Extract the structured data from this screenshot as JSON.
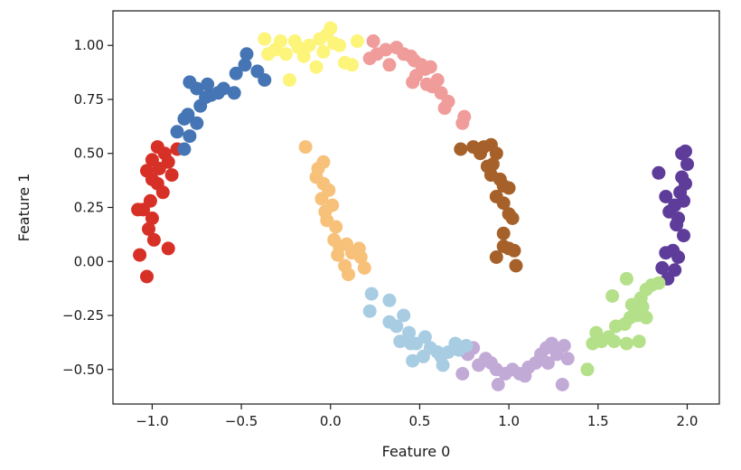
{
  "chart_data": {
    "type": "scatter",
    "title": "",
    "xlabel": "Feature 0",
    "ylabel": "Feature 1",
    "xlim": [
      -1.22,
      2.18
    ],
    "ylim": [
      -0.66,
      1.16
    ],
    "xticks": [
      -1.0,
      -0.5,
      0.0,
      0.5,
      1.0,
      1.5,
      2.0
    ],
    "xtick_labels": [
      "−1.0",
      "−0.5",
      "0.0",
      "0.5",
      "1.0",
      "1.5",
      "2.0"
    ],
    "yticks": [
      1.0,
      0.75,
      0.5,
      0.25,
      0.0,
      -0.25,
      -0.5
    ],
    "ytick_labels": [
      "1.00",
      "0.75",
      "0.50",
      "0.25",
      "0.00",
      "−0.25",
      "−0.50"
    ],
    "grid": false,
    "legend": false,
    "clusters": [
      {
        "color": "#d73027",
        "points": [
          [
            -1.07,
            0.03
          ],
          [
            -1.03,
            -0.07
          ],
          [
            -0.91,
            0.06
          ],
          [
            -0.99,
            0.1
          ],
          [
            -1.02,
            0.15
          ],
          [
            -1.0,
            0.2
          ],
          [
            -1.08,
            0.24
          ],
          [
            -1.05,
            0.24
          ],
          [
            -1.01,
            0.28
          ],
          [
            -0.94,
            0.32
          ],
          [
            -0.97,
            0.36
          ],
          [
            -1.03,
            0.42
          ],
          [
            -0.89,
            0.4
          ],
          [
            -0.96,
            0.43
          ],
          [
            -1.0,
            0.47
          ],
          [
            -0.93,
            0.5
          ],
          [
            -0.86,
            0.52
          ],
          [
            -0.97,
            0.53
          ],
          [
            -0.91,
            0.46
          ],
          [
            -1.0,
            0.38
          ]
        ]
      },
      {
        "color": "#4575b4",
        "points": [
          [
            -0.82,
            0.52
          ],
          [
            -0.86,
            0.6
          ],
          [
            -0.79,
            0.58
          ],
          [
            -0.82,
            0.66
          ],
          [
            -0.75,
            0.64
          ],
          [
            -0.8,
            0.68
          ],
          [
            -0.73,
            0.72
          ],
          [
            -0.7,
            0.76
          ],
          [
            -0.75,
            0.8
          ],
          [
            -0.67,
            0.77
          ],
          [
            -0.63,
            0.78
          ],
          [
            -0.69,
            0.82
          ],
          [
            -0.6,
            0.8
          ],
          [
            -0.54,
            0.78
          ],
          [
            -0.53,
            0.87
          ],
          [
            -0.48,
            0.91
          ],
          [
            -0.47,
            0.96
          ],
          [
            -0.41,
            0.88
          ],
          [
            -0.37,
            0.84
          ],
          [
            -0.79,
            0.83
          ]
        ]
      },
      {
        "color": "#fdf47a",
        "points": [
          [
            -0.37,
            1.03
          ],
          [
            -0.35,
            0.96
          ],
          [
            -0.31,
            0.98
          ],
          [
            -0.28,
            1.02
          ],
          [
            -0.25,
            0.96
          ],
          [
            -0.23,
            0.84
          ],
          [
            -0.2,
            1.02
          ],
          [
            -0.18,
            0.99
          ],
          [
            -0.15,
            0.95
          ],
          [
            -0.12,
            1.0
          ],
          [
            -0.08,
            0.9
          ],
          [
            -0.06,
            1.03
          ],
          [
            -0.02,
            1.05
          ],
          [
            0.0,
            1.08
          ],
          [
            0.02,
            1.01
          ],
          [
            -0.04,
            0.97
          ],
          [
            0.05,
            1.0
          ],
          [
            0.08,
            0.92
          ],
          [
            0.12,
            0.91
          ],
          [
            0.15,
            1.02
          ]
        ]
      },
      {
        "color": "#ef9c9a",
        "points": [
          [
            0.24,
            1.02
          ],
          [
            0.22,
            0.94
          ],
          [
            0.26,
            0.96
          ],
          [
            0.31,
            0.98
          ],
          [
            0.33,
            0.91
          ],
          [
            0.37,
            0.99
          ],
          [
            0.41,
            0.96
          ],
          [
            0.45,
            0.95
          ],
          [
            0.47,
            0.93
          ],
          [
            0.48,
            0.86
          ],
          [
            0.51,
            0.91
          ],
          [
            0.53,
            0.89
          ],
          [
            0.54,
            0.82
          ],
          [
            0.57,
            0.81
          ],
          [
            0.6,
            0.84
          ],
          [
            0.62,
            0.78
          ],
          [
            0.64,
            0.71
          ],
          [
            0.66,
            0.74
          ],
          [
            0.75,
            0.67
          ],
          [
            0.74,
            0.64
          ],
          [
            0.56,
            0.9
          ],
          [
            0.46,
            0.83
          ]
        ]
      },
      {
        "color": "#a6612a",
        "points": [
          [
            0.73,
            0.52
          ],
          [
            0.8,
            0.53
          ],
          [
            0.84,
            0.5
          ],
          [
            0.86,
            0.53
          ],
          [
            0.93,
            0.5
          ],
          [
            0.91,
            0.45
          ],
          [
            0.9,
            0.4
          ],
          [
            0.95,
            0.38
          ],
          [
            0.97,
            0.35
          ],
          [
            1.0,
            0.34
          ],
          [
            0.93,
            0.3
          ],
          [
            0.97,
            0.27
          ],
          [
            1.0,
            0.22
          ],
          [
            1.02,
            0.2
          ],
          [
            0.97,
            0.13
          ],
          [
            0.97,
            0.07
          ],
          [
            0.93,
            0.02
          ],
          [
            1.0,
            0.06
          ],
          [
            1.03,
            0.05
          ],
          [
            1.04,
            -0.02
          ],
          [
            0.9,
            0.54
          ],
          [
            0.88,
            0.44
          ]
        ]
      },
      {
        "color": "#5e3c99",
        "points": [
          [
            1.99,
            0.51
          ],
          [
            1.97,
            0.5
          ],
          [
            2.0,
            0.45
          ],
          [
            1.97,
            0.39
          ],
          [
            1.99,
            0.36
          ],
          [
            1.84,
            0.41
          ],
          [
            1.96,
            0.32
          ],
          [
            1.98,
            0.28
          ],
          [
            1.93,
            0.26
          ],
          [
            1.9,
            0.23
          ],
          [
            1.95,
            0.2
          ],
          [
            1.98,
            0.12
          ],
          [
            1.92,
            0.05
          ],
          [
            1.88,
            0.04
          ],
          [
            1.95,
            0.02
          ],
          [
            1.86,
            -0.03
          ],
          [
            1.93,
            -0.04
          ],
          [
            1.89,
            -0.08
          ],
          [
            1.94,
            0.17
          ],
          [
            1.88,
            0.3
          ]
        ]
      },
      {
        "color": "#b5e08a",
        "points": [
          [
            1.44,
            -0.5
          ],
          [
            1.47,
            -0.38
          ],
          [
            1.49,
            -0.33
          ],
          [
            1.52,
            -0.37
          ],
          [
            1.56,
            -0.35
          ],
          [
            1.59,
            -0.37
          ],
          [
            1.6,
            -0.3
          ],
          [
            1.65,
            -0.29
          ],
          [
            1.66,
            -0.38
          ],
          [
            1.69,
            -0.2
          ],
          [
            1.68,
            -0.26
          ],
          [
            1.73,
            -0.37
          ],
          [
            1.72,
            -0.25
          ],
          [
            1.77,
            -0.26
          ],
          [
            1.74,
            -0.17
          ],
          [
            1.77,
            -0.13
          ],
          [
            1.8,
            -0.11
          ],
          [
            1.84,
            -0.1
          ],
          [
            1.66,
            -0.08
          ],
          [
            1.58,
            -0.16
          ],
          [
            1.75,
            -0.21
          ]
        ]
      },
      {
        "color": "#c2aad6",
        "points": [
          [
            0.74,
            -0.52
          ],
          [
            0.77,
            -0.43
          ],
          [
            0.8,
            -0.4
          ],
          [
            0.83,
            -0.48
          ],
          [
            0.87,
            -0.45
          ],
          [
            0.9,
            -0.47
          ],
          [
            0.93,
            -0.5
          ],
          [
            0.94,
            -0.57
          ],
          [
            0.98,
            -0.52
          ],
          [
            1.02,
            -0.5
          ],
          [
            1.06,
            -0.52
          ],
          [
            1.09,
            -0.53
          ],
          [
            1.11,
            -0.49
          ],
          [
            1.15,
            -0.47
          ],
          [
            1.18,
            -0.43
          ],
          [
            1.21,
            -0.4
          ],
          [
            1.24,
            -0.38
          ],
          [
            1.27,
            -0.43
          ],
          [
            1.31,
            -0.39
          ],
          [
            1.33,
            -0.45
          ],
          [
            1.3,
            -0.57
          ],
          [
            1.22,
            -0.47
          ]
        ]
      },
      {
        "color": "#a8cde3",
        "points": [
          [
            0.23,
            -0.15
          ],
          [
            0.22,
            -0.23
          ],
          [
            0.33,
            -0.18
          ],
          [
            0.33,
            -0.28
          ],
          [
            0.37,
            -0.3
          ],
          [
            0.41,
            -0.25
          ],
          [
            0.39,
            -0.37
          ],
          [
            0.44,
            -0.33
          ],
          [
            0.45,
            -0.38
          ],
          [
            0.46,
            -0.46
          ],
          [
            0.48,
            -0.38
          ],
          [
            0.53,
            -0.35
          ],
          [
            0.56,
            -0.4
          ],
          [
            0.6,
            -0.42
          ],
          [
            0.63,
            -0.48
          ],
          [
            0.62,
            -0.44
          ],
          [
            0.66,
            -0.42
          ],
          [
            0.7,
            -0.38
          ],
          [
            0.72,
            -0.41
          ],
          [
            0.76,
            -0.39
          ],
          [
            0.52,
            -0.44
          ]
        ]
      },
      {
        "color": "#f7c17a",
        "points": [
          [
            -0.14,
            0.53
          ],
          [
            -0.07,
            0.43
          ],
          [
            -0.04,
            0.46
          ],
          [
            -0.08,
            0.39
          ],
          [
            -0.04,
            0.36
          ],
          [
            -0.01,
            0.33
          ],
          [
            -0.05,
            0.29
          ],
          [
            -0.03,
            0.23
          ],
          [
            0.01,
            0.26
          ],
          [
            -0.02,
            0.19
          ],
          [
            0.03,
            0.16
          ],
          [
            0.02,
            0.1
          ],
          [
            0.05,
            0.07
          ],
          [
            0.04,
            0.03
          ],
          [
            0.09,
            0.08
          ],
          [
            0.08,
            -0.02
          ],
          [
            0.12,
            0.04
          ],
          [
            0.16,
            0.06
          ],
          [
            0.17,
            0.02
          ],
          [
            0.19,
            -0.03
          ],
          [
            0.1,
            -0.06
          ]
        ]
      }
    ]
  }
}
